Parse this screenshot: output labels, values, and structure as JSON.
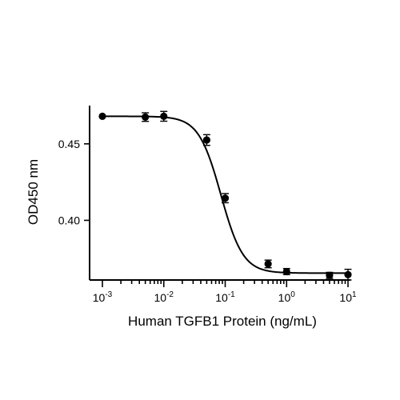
{
  "chart_data": {
    "type": "scatter",
    "xscale": "log",
    "xlabel": "Human TGFB1 Protein (ng/mL)",
    "ylabel": "OD450 nm",
    "xlim": [
      0.001,
      10
    ],
    "ylim": [
      0.361,
      0.475
    ],
    "x_ticks": [
      {
        "value": 0.001,
        "base": "10",
        "exp": "-3"
      },
      {
        "value": 0.01,
        "base": "10",
        "exp": "-2"
      },
      {
        "value": 0.1,
        "base": "10",
        "exp": "-1"
      },
      {
        "value": 1,
        "base": "10",
        "exp": "0"
      },
      {
        "value": 10,
        "base": "10",
        "exp": "1"
      }
    ],
    "y_ticks": [
      {
        "value": 0.4,
        "label": "0.40"
      },
      {
        "value": 0.45,
        "label": "0.45"
      }
    ],
    "points": [
      {
        "x": 0.001,
        "y": 0.468,
        "err": 0.0
      },
      {
        "x": 0.005,
        "y": 0.4675,
        "err": 0.0028
      },
      {
        "x": 0.01,
        "y": 0.468,
        "err": 0.0032
      },
      {
        "x": 0.05,
        "y": 0.4525,
        "err": 0.0035
      },
      {
        "x": 0.1,
        "y": 0.4145,
        "err": 0.003
      },
      {
        "x": 0.5,
        "y": 0.3715,
        "err": 0.0025
      },
      {
        "x": 1,
        "y": 0.3665,
        "err": 0.002
      },
      {
        "x": 5,
        "y": 0.364,
        "err": 0.002
      },
      {
        "x": 10,
        "y": 0.3645,
        "err": 0.0035
      }
    ],
    "fit": {
      "model": "4PL",
      "top": 0.468,
      "bottom": 0.3655,
      "ec50": 0.085,
      "hill": 2.4
    },
    "grid": false,
    "legend": "none",
    "color": "#000000"
  }
}
